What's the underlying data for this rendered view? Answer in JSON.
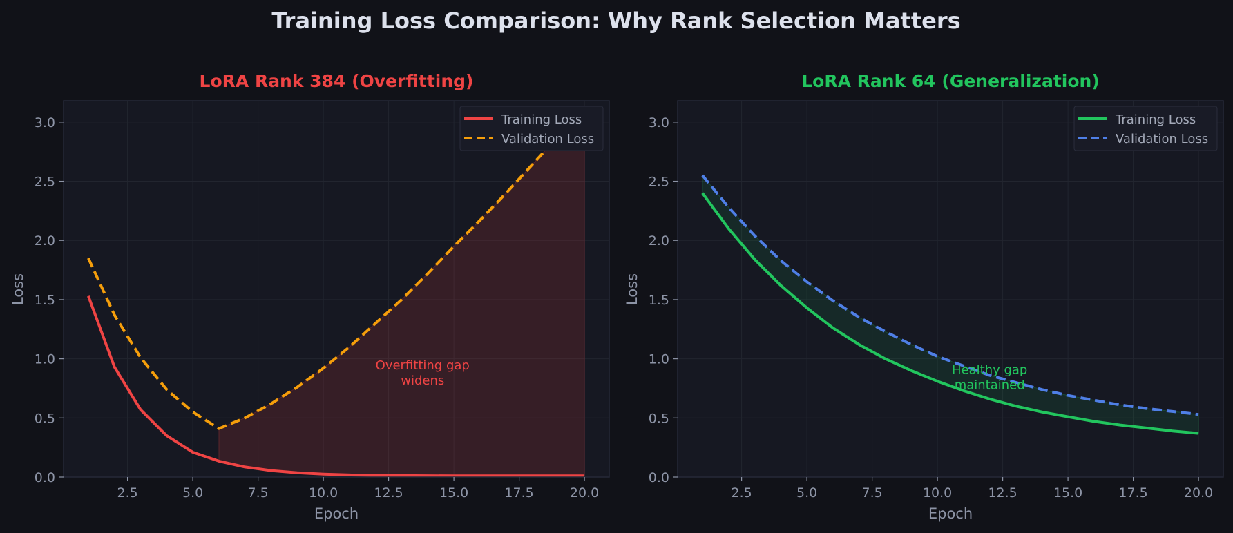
{
  "suptitle": "Training Loss Comparison: Why Rank Selection Matters",
  "chart_data": [
    {
      "type": "line",
      "title": "LoRA Rank 384 (Overfitting)",
      "title_color": "#ef4444",
      "xlabel": "Epoch",
      "ylabel": "Loss",
      "xlim": [
        0.05,
        20.95
      ],
      "ylim": [
        0,
        3.18
      ],
      "xticks": [
        "2.5",
        "5.0",
        "7.5",
        "10.0",
        "12.5",
        "15.0",
        "17.5",
        "20.0"
      ],
      "yticks": [
        "0.0",
        "0.5",
        "1.0",
        "1.5",
        "2.0",
        "2.5",
        "3.0"
      ],
      "grid": true,
      "legend_position": "top-right",
      "x": [
        1,
        2,
        3,
        4,
        5,
        6,
        7,
        8,
        9,
        10,
        11,
        12,
        13,
        14,
        15,
        16,
        17,
        18,
        19,
        20
      ],
      "series": [
        {
          "name": "Training Loss",
          "color": "#ef4444",
          "style": "solid",
          "values": [
            1.53,
            0.93,
            0.57,
            0.35,
            0.21,
            0.135,
            0.085,
            0.055,
            0.037,
            0.025,
            0.018,
            0.014,
            0.012,
            0.011,
            0.01,
            0.01,
            0.01,
            0.01,
            0.01,
            0.01
          ]
        },
        {
          "name": "Validation Loss",
          "color": "#f59e0b",
          "style": "dashed",
          "values": [
            1.85,
            1.37,
            1.01,
            0.74,
            0.55,
            0.41,
            0.5,
            0.62,
            0.76,
            0.92,
            1.1,
            1.3,
            1.5,
            1.72,
            1.95,
            2.17,
            2.4,
            2.64,
            2.88,
            2.88
          ]
        }
      ],
      "fill_between": {
        "from": 6,
        "to": 20,
        "color": "#ef4444",
        "opacity": 0.15
      },
      "annotation": {
        "lines": [
          "Overfitting gap",
          "widens"
        ],
        "x": 13.8,
        "y": 0.9,
        "color": "#ef4444"
      }
    },
    {
      "type": "line",
      "title": "LoRA Rank 64 (Generalization)",
      "title_color": "#22c55e",
      "xlabel": "Epoch",
      "ylabel": "Loss",
      "xlim": [
        0.05,
        20.95
      ],
      "ylim": [
        0,
        3.18
      ],
      "xticks": [
        "2.5",
        "5.0",
        "7.5",
        "10.0",
        "12.5",
        "15.0",
        "17.5",
        "20.0"
      ],
      "yticks": [
        "0.0",
        "0.5",
        "1.0",
        "1.5",
        "2.0",
        "2.5",
        "3.0"
      ],
      "grid": true,
      "legend_position": "top-right",
      "x": [
        1,
        2,
        3,
        4,
        5,
        6,
        7,
        8,
        9,
        10,
        11,
        12,
        13,
        14,
        15,
        16,
        17,
        18,
        19,
        20
      ],
      "series": [
        {
          "name": "Training Loss",
          "color": "#22c55e",
          "style": "solid",
          "values": [
            2.4,
            2.1,
            1.84,
            1.62,
            1.43,
            1.26,
            1.12,
            1.0,
            0.9,
            0.81,
            0.73,
            0.66,
            0.6,
            0.55,
            0.51,
            0.47,
            0.44,
            0.415,
            0.39,
            0.37
          ]
        },
        {
          "name": "Validation Loss",
          "color": "#4f7fe6",
          "style": "dashed",
          "values": [
            2.55,
            2.28,
            2.04,
            1.83,
            1.65,
            1.49,
            1.35,
            1.23,
            1.12,
            1.02,
            0.94,
            0.86,
            0.8,
            0.74,
            0.69,
            0.65,
            0.61,
            0.58,
            0.555,
            0.53
          ]
        }
      ],
      "fill_between": {
        "from": 1,
        "to": 20,
        "color": "#22c55e",
        "opacity": 0.1
      },
      "annotation": {
        "lines": [
          "Healthy gap",
          "maintained"
        ],
        "x": 12.0,
        "y": 0.86,
        "color": "#22c55e"
      }
    }
  ]
}
